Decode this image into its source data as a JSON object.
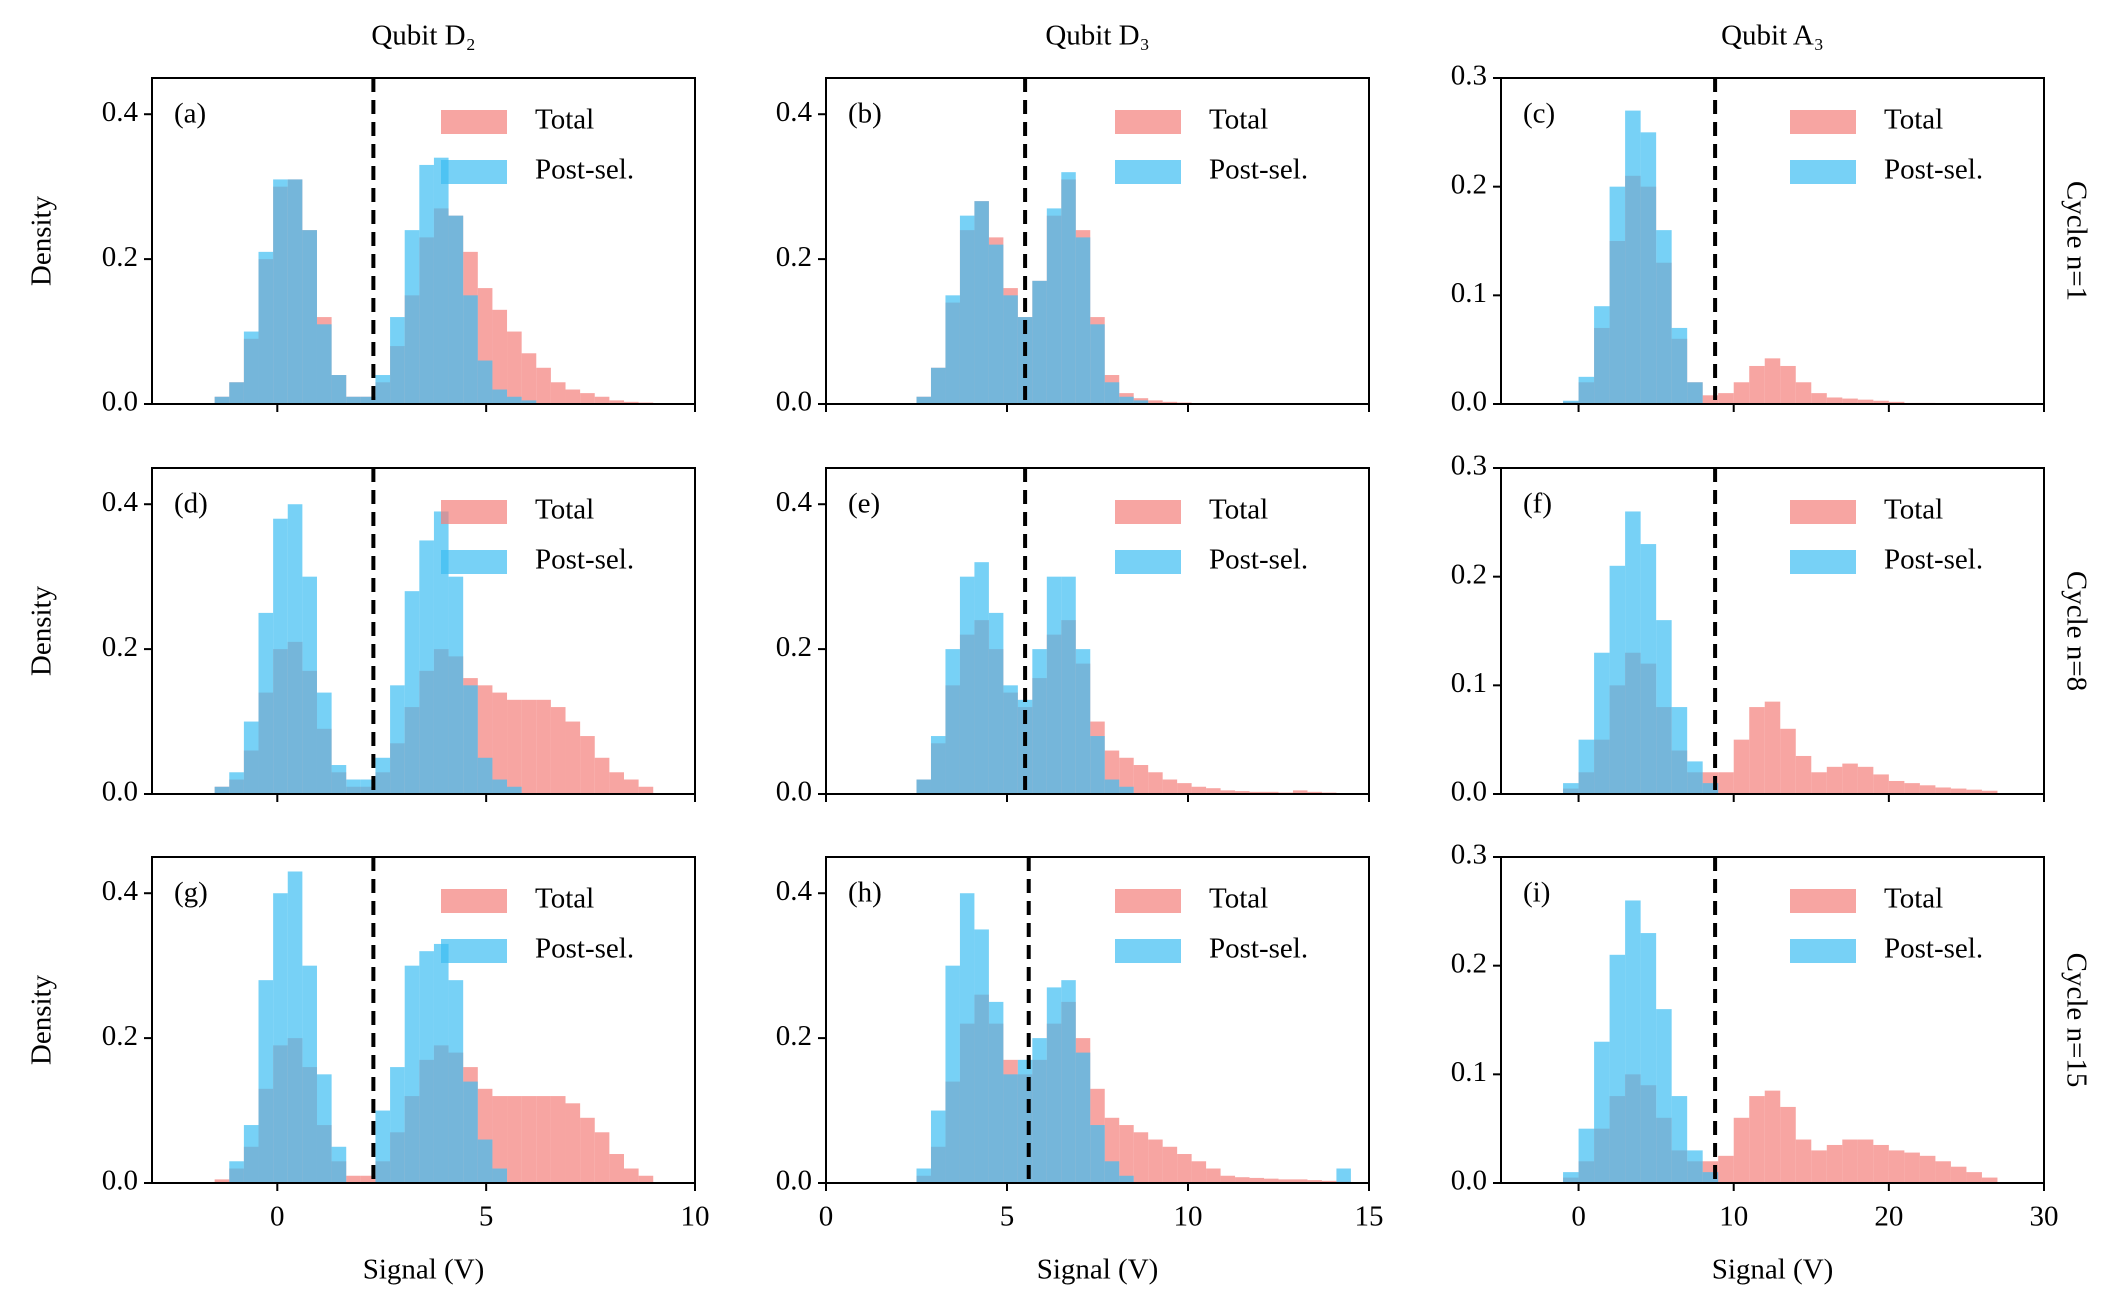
{
  "chart_data": [
    {
      "type": "histogram",
      "label": "(a)",
      "title": "Qubit D₂",
      "ylabel": "Density",
      "xtick_labels": false,
      "legend": "upper right",
      "alpha": 0.7,
      "xlim": [
        -3,
        10
      ],
      "xticks": [
        0,
        5,
        10
      ],
      "ylim": [
        0,
        0.45
      ],
      "yticks": [
        {
          "value": 0,
          "label": "0.0"
        },
        0.2,
        0.4
      ],
      "threshold": 2.3,
      "bins": [
        -1.5,
        -1.15,
        -0.8,
        -0.45,
        -0.1,
        0.25,
        0.6,
        0.95,
        1.3,
        1.65,
        2,
        2.35,
        2.7,
        3.05,
        3.4,
        3.75,
        4.1,
        4.45,
        4.8,
        5.15,
        5.5,
        5.85,
        6.2,
        6.55,
        6.9,
        7.25,
        7.6,
        7.95,
        8.3,
        8.65,
        9
      ],
      "series": [
        {
          "name": "Total",
          "color": "#f47f7a",
          "values": [
            0.01,
            0.03,
            0.09,
            0.2,
            0.3,
            0.31,
            0.24,
            0.12,
            0.04,
            0.01,
            0.01,
            0.03,
            0.08,
            0.15,
            0.23,
            0.27,
            0.26,
            0.21,
            0.16,
            0.13,
            0.1,
            0.07,
            0.05,
            0.03,
            0.02,
            0.015,
            0.01,
            0.005,
            0.003,
            0.002
          ]
        },
        {
          "name": "Post-sel.",
          "color": "#3dbef2",
          "values": [
            0.01,
            0.03,
            0.1,
            0.21,
            0.31,
            0.31,
            0.24,
            0.11,
            0.04,
            0.01,
            0.01,
            0.04,
            0.12,
            0.24,
            0.33,
            0.34,
            0.26,
            0.15,
            0.06,
            0.02,
            0.01,
            0.005,
            0,
            0,
            0,
            0,
            0,
            0,
            0,
            0
          ]
        }
      ]
    },
    {
      "type": "histogram",
      "label": "(b)",
      "title": "Qubit D₃",
      "xtick_labels": false,
      "legend": "upper right",
      "alpha": 0.7,
      "xlim": [
        0,
        15
      ],
      "xticks": [
        0,
        5,
        10,
        15
      ],
      "ylim": [
        0,
        0.45
      ],
      "yticks": [
        {
          "value": 0,
          "label": "0.0"
        },
        0.2,
        0.4
      ],
      "threshold": 5.5,
      "bins": [
        2.5,
        2.9,
        3.3,
        3.7,
        4.1,
        4.5,
        4.9,
        5.3,
        5.7,
        6.1,
        6.5,
        6.9,
        7.3,
        7.7,
        8.1,
        8.5,
        8.9,
        9.3,
        9.7,
        10.1,
        10.5,
        10.9,
        11.3,
        11.7,
        12.1,
        12.5,
        12.9,
        13.3,
        13.7,
        14.1,
        14.5
      ],
      "series": [
        {
          "name": "Total",
          "color": "#f47f7a",
          "values": [
            0.01,
            0.05,
            0.14,
            0.24,
            0.28,
            0.23,
            0.16,
            0.12,
            0.17,
            0.26,
            0.31,
            0.24,
            0.12,
            0.04,
            0.015,
            0.008,
            0.005,
            0.003,
            0.002,
            0.001,
            0,
            0,
            0,
            0,
            0,
            0,
            0,
            0,
            0,
            0
          ]
        },
        {
          "name": "Post-sel.",
          "color": "#3dbef2",
          "values": [
            0.01,
            0.05,
            0.15,
            0.26,
            0.28,
            0.22,
            0.15,
            0.12,
            0.17,
            0.27,
            0.32,
            0.23,
            0.11,
            0.03,
            0.01,
            0.005,
            0,
            0,
            0,
            0,
            0,
            0,
            0,
            0,
            0,
            0,
            0,
            0,
            0,
            0
          ]
        }
      ]
    },
    {
      "type": "histogram",
      "label": "(c)",
      "title": "Qubit A₃",
      "row_label": "Cycle n=1",
      "xtick_labels": false,
      "legend": "upper right",
      "alpha": 0.7,
      "xlim": [
        -5,
        30
      ],
      "xticks": [
        0,
        10,
        20,
        30
      ],
      "ylim": [
        0,
        0.3
      ],
      "yticks": [
        {
          "value": 0,
          "label": "0.0"
        },
        0.1,
        0.2,
        0.3
      ],
      "threshold": 8.8,
      "bins": [
        -1,
        0,
        1,
        2,
        3,
        4,
        5,
        6,
        7,
        8,
        9,
        10,
        11,
        12,
        13,
        14,
        15,
        16,
        17,
        18,
        19,
        20,
        21,
        22,
        23,
        24,
        25,
        26,
        27
      ],
      "series": [
        {
          "name": "Total",
          "color": "#f47f7a",
          "values": [
            0.002,
            0.02,
            0.07,
            0.15,
            0.21,
            0.2,
            0.13,
            0.06,
            0.02,
            0.008,
            0.01,
            0.02,
            0.035,
            0.042,
            0.035,
            0.02,
            0.01,
            0.006,
            0.005,
            0.004,
            0.003,
            0.002,
            0.001,
            0.001,
            0,
            0,
            0,
            0
          ]
        },
        {
          "name": "Post-sel.",
          "color": "#3dbef2",
          "values": [
            0.003,
            0.025,
            0.09,
            0.2,
            0.27,
            0.25,
            0.16,
            0.07,
            0.02,
            0,
            0,
            0,
            0,
            0,
            0,
            0,
            0,
            0,
            0,
            0,
            0,
            0,
            0,
            0,
            0,
            0,
            0,
            0
          ]
        }
      ]
    },
    {
      "type": "histogram",
      "label": "(d)",
      "ylabel": "Density",
      "xtick_labels": false,
      "legend": "upper right",
      "alpha": 0.7,
      "xlim": [
        -3,
        10
      ],
      "xticks": [
        0,
        5,
        10
      ],
      "ylim": [
        0,
        0.45
      ],
      "yticks": [
        {
          "value": 0,
          "label": "0.0"
        },
        0.2,
        0.4
      ],
      "threshold": 2.3,
      "bins": [
        -1.5,
        -1.15,
        -0.8,
        -0.45,
        -0.1,
        0.25,
        0.6,
        0.95,
        1.3,
        1.65,
        2,
        2.35,
        2.7,
        3.05,
        3.4,
        3.75,
        4.1,
        4.45,
        4.8,
        5.15,
        5.5,
        5.85,
        6.2,
        6.55,
        6.9,
        7.25,
        7.6,
        7.95,
        8.3,
        8.65,
        9
      ],
      "series": [
        {
          "name": "Total",
          "color": "#f47f7a",
          "values": [
            0.01,
            0.02,
            0.06,
            0.14,
            0.2,
            0.21,
            0.17,
            0.09,
            0.03,
            0.01,
            0.01,
            0.03,
            0.07,
            0.12,
            0.17,
            0.2,
            0.19,
            0.16,
            0.15,
            0.14,
            0.13,
            0.13,
            0.13,
            0.12,
            0.1,
            0.08,
            0.05,
            0.03,
            0.02,
            0.01
          ]
        },
        {
          "name": "Post-sel.",
          "color": "#3dbef2",
          "values": [
            0.01,
            0.03,
            0.1,
            0.25,
            0.38,
            0.4,
            0.3,
            0.14,
            0.04,
            0.02,
            0.02,
            0.05,
            0.15,
            0.28,
            0.35,
            0.39,
            0.3,
            0.15,
            0.05,
            0.02,
            0.01,
            0,
            0,
            0,
            0,
            0,
            0,
            0,
            0,
            0
          ]
        }
      ]
    },
    {
      "type": "histogram",
      "label": "(e)",
      "xtick_labels": false,
      "legend": "upper right",
      "alpha": 0.7,
      "xlim": [
        0,
        15
      ],
      "xticks": [
        0,
        5,
        10,
        15
      ],
      "ylim": [
        0,
        0.45
      ],
      "yticks": [
        {
          "value": 0,
          "label": "0.0"
        },
        0.2,
        0.4
      ],
      "threshold": 5.5,
      "bins": [
        2.5,
        2.9,
        3.3,
        3.7,
        4.1,
        4.5,
        4.9,
        5.3,
        5.7,
        6.1,
        6.5,
        6.9,
        7.3,
        7.7,
        8.1,
        8.5,
        8.9,
        9.3,
        9.7,
        10.1,
        10.5,
        10.9,
        11.3,
        11.7,
        12.1,
        12.5,
        12.9,
        13.3,
        13.7,
        14.1,
        14.5
      ],
      "series": [
        {
          "name": "Total",
          "color": "#f47f7a",
          "values": [
            0.02,
            0.07,
            0.15,
            0.22,
            0.24,
            0.2,
            0.14,
            0.12,
            0.16,
            0.22,
            0.24,
            0.18,
            0.1,
            0.06,
            0.05,
            0.04,
            0.03,
            0.02,
            0.015,
            0.01,
            0.008,
            0.005,
            0.004,
            0.003,
            0.003,
            0.002,
            0.005,
            0.003,
            0.002,
            0.001
          ]
        },
        {
          "name": "Post-sel.",
          "color": "#3dbef2",
          "values": [
            0.02,
            0.08,
            0.2,
            0.3,
            0.32,
            0.25,
            0.15,
            0.13,
            0.2,
            0.3,
            0.3,
            0.2,
            0.08,
            0.02,
            0.01,
            0,
            0,
            0,
            0,
            0,
            0,
            0,
            0,
            0,
            0,
            0,
            0,
            0,
            0,
            0
          ]
        }
      ]
    },
    {
      "type": "histogram",
      "label": "(f)",
      "row_label": "Cycle n=8",
      "xtick_labels": false,
      "legend": "upper right",
      "alpha": 0.7,
      "xlim": [
        -5,
        30
      ],
      "xticks": [
        0,
        10,
        20,
        30
      ],
      "ylim": [
        0,
        0.3
      ],
      "yticks": [
        {
          "value": 0,
          "label": "0.0"
        },
        0.1,
        0.2,
        0.3
      ],
      "threshold": 8.8,
      "bins": [
        -1,
        0,
        1,
        2,
        3,
        4,
        5,
        6,
        7,
        8,
        9,
        10,
        11,
        12,
        13,
        14,
        15,
        16,
        17,
        18,
        19,
        20,
        21,
        22,
        23,
        24,
        25,
        26,
        27
      ],
      "series": [
        {
          "name": "Total",
          "color": "#f47f7a",
          "values": [
            0.005,
            0.02,
            0.05,
            0.1,
            0.13,
            0.12,
            0.08,
            0.04,
            0.02,
            0.02,
            0.02,
            0.05,
            0.08,
            0.085,
            0.06,
            0.035,
            0.02,
            0.025,
            0.028,
            0.025,
            0.018,
            0.012,
            0.01,
            0.008,
            0.006,
            0.005,
            0.004,
            0.003
          ]
        },
        {
          "name": "Post-sel.",
          "color": "#3dbef2",
          "values": [
            0.01,
            0.05,
            0.13,
            0.21,
            0.26,
            0.23,
            0.16,
            0.08,
            0.03,
            0.01,
            0,
            0,
            0,
            0,
            0,
            0,
            0,
            0,
            0,
            0,
            0,
            0,
            0,
            0,
            0,
            0,
            0,
            0
          ]
        }
      ]
    },
    {
      "type": "histogram",
      "label": "(g)",
      "ylabel": "Density",
      "xlabel": "Signal (V)",
      "xtick_labels": true,
      "legend": "upper right",
      "alpha": 0.7,
      "xlim": [
        -3,
        10
      ],
      "xticks": [
        0,
        5,
        10
      ],
      "ylim": [
        0,
        0.45
      ],
      "yticks": [
        {
          "value": 0,
          "label": "0.0"
        },
        0.2,
        0.4
      ],
      "threshold": 2.3,
      "bins": [
        -1.5,
        -1.15,
        -0.8,
        -0.45,
        -0.1,
        0.25,
        0.6,
        0.95,
        1.3,
        1.65,
        2,
        2.35,
        2.7,
        3.05,
        3.4,
        3.75,
        4.1,
        4.45,
        4.8,
        5.15,
        5.5,
        5.85,
        6.2,
        6.55,
        6.9,
        7.25,
        7.6,
        7.95,
        8.3,
        8.65,
        9
      ],
      "series": [
        {
          "name": "Total",
          "color": "#f47f7a",
          "values": [
            0.005,
            0.02,
            0.05,
            0.13,
            0.19,
            0.2,
            0.16,
            0.08,
            0.03,
            0.01,
            0.01,
            0.03,
            0.07,
            0.12,
            0.17,
            0.19,
            0.18,
            0.16,
            0.13,
            0.12,
            0.12,
            0.12,
            0.12,
            0.12,
            0.11,
            0.09,
            0.07,
            0.04,
            0.02,
            0.01
          ]
        },
        {
          "name": "Post-sel.",
          "color": "#3dbef2",
          "values": [
            0,
            0.03,
            0.08,
            0.28,
            0.4,
            0.43,
            0.3,
            0.15,
            0.05,
            0,
            0,
            0.1,
            0.16,
            0.3,
            0.32,
            0.33,
            0.28,
            0.14,
            0.06,
            0.02,
            0,
            0,
            0,
            0,
            0,
            0,
            0,
            0,
            0,
            0
          ]
        }
      ]
    },
    {
      "type": "histogram",
      "label": "(h)",
      "xlabel": "Signal (V)",
      "xtick_labels": true,
      "legend": "upper right",
      "alpha": 0.7,
      "xlim": [
        0,
        15
      ],
      "xticks": [
        0,
        5,
        10,
        15
      ],
      "ylim": [
        0,
        0.45
      ],
      "yticks": [
        {
          "value": 0,
          "label": "0.0"
        },
        0.2,
        0.4
      ],
      "threshold": 5.6,
      "bins": [
        2.5,
        2.9,
        3.3,
        3.7,
        4.1,
        4.5,
        4.9,
        5.3,
        5.7,
        6.1,
        6.5,
        6.9,
        7.3,
        7.7,
        8.1,
        8.5,
        8.9,
        9.3,
        9.7,
        10.1,
        10.5,
        10.9,
        11.3,
        11.7,
        12.1,
        12.5,
        12.9,
        13.3,
        13.7,
        14.1,
        14.5
      ],
      "series": [
        {
          "name": "Total",
          "color": "#f47f7a",
          "values": [
            0.01,
            0.05,
            0.14,
            0.22,
            0.26,
            0.22,
            0.17,
            0.15,
            0.17,
            0.22,
            0.25,
            0.2,
            0.13,
            0.09,
            0.08,
            0.07,
            0.06,
            0.05,
            0.04,
            0.03,
            0.02,
            0.01,
            0.008,
            0.007,
            0.006,
            0.005,
            0.005,
            0.004,
            0.003,
            0.002
          ]
        },
        {
          "name": "Post-sel.",
          "color": "#3dbef2",
          "values": [
            0.02,
            0.1,
            0.3,
            0.4,
            0.35,
            0.25,
            0.15,
            0.17,
            0.2,
            0.27,
            0.28,
            0.18,
            0.08,
            0.03,
            0.01,
            0,
            0,
            0,
            0,
            0,
            0,
            0,
            0,
            0,
            0,
            0,
            0,
            0,
            0,
            0.02
          ]
        }
      ]
    },
    {
      "type": "histogram",
      "label": "(i)",
      "row_label": "Cycle n=15",
      "xlabel": "Signal (V)",
      "xtick_labels": true,
      "legend": "upper right",
      "alpha": 0.7,
      "xlim": [
        -5,
        30
      ],
      "xticks": [
        0,
        10,
        20,
        30
      ],
      "ylim": [
        0,
        0.3
      ],
      "yticks": [
        {
          "value": 0,
          "label": "0.0"
        },
        0.1,
        0.2,
        0.3
      ],
      "threshold": 8.8,
      "bins": [
        -1,
        0,
        1,
        2,
        3,
        4,
        5,
        6,
        7,
        8,
        9,
        10,
        11,
        12,
        13,
        14,
        15,
        16,
        17,
        18,
        19,
        20,
        21,
        22,
        23,
        24,
        25,
        26,
        27
      ],
      "series": [
        {
          "name": "Total",
          "color": "#f47f7a",
          "values": [
            0.005,
            0.02,
            0.05,
            0.08,
            0.1,
            0.09,
            0.06,
            0.03,
            0.02,
            0.02,
            0.025,
            0.06,
            0.08,
            0.085,
            0.07,
            0.04,
            0.03,
            0.035,
            0.04,
            0.04,
            0.035,
            0.03,
            0.028,
            0.025,
            0.02,
            0.015,
            0.01,
            0.005
          ]
        },
        {
          "name": "Post-sel.",
          "color": "#3dbef2",
          "values": [
            0.01,
            0.05,
            0.13,
            0.21,
            0.26,
            0.23,
            0.16,
            0.08,
            0.03,
            0.01,
            0,
            0,
            0,
            0,
            0,
            0,
            0,
            0,
            0,
            0,
            0,
            0,
            0,
            0,
            0,
            0,
            0,
            0
          ]
        }
      ]
    }
  ]
}
